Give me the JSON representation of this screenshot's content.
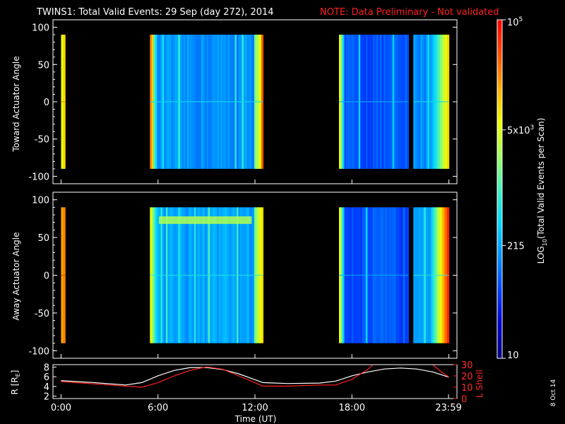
{
  "title": "TWINS1: Total Valid Events: 29 Sep (day 272), 2014",
  "note": "NOTE: Data Preliminary - Not validated",
  "date_stamp": "8 Oct 14",
  "colorbar": {
    "label": "LOG10(Total Valid Events per Scan)",
    "label_parts": {
      "pre": "LOG",
      "sub": "10",
      "post": "(Total Valid Events per Scan)"
    },
    "ticks": [
      {
        "id": "top",
        "base": "10",
        "exp": "5",
        "value": 100000
      },
      {
        "id": "mid",
        "base": "5x10",
        "exp": "3",
        "value": 5000
      },
      {
        "id": "low",
        "base": "215",
        "exp": "",
        "value": 215
      },
      {
        "id": "bot",
        "base": "10",
        "exp": "",
        "value": 10
      }
    ],
    "colors": [
      "#000080",
      "#0000d0",
      "#0040ff",
      "#0090ff",
      "#00d8ff",
      "#40f0c0",
      "#a0ff60",
      "#f0ff00",
      "#ffb000",
      "#ff5000",
      "#ff0000"
    ]
  },
  "chart_data": [
    {
      "id": "toward",
      "type": "heatmap",
      "ylabel": "Toward Actuator Angle",
      "ylim": [
        -110,
        110
      ],
      "yticks": [
        "100",
        "50",
        "0",
        "-50",
        "-100"
      ],
      "ytick_values": [
        100,
        50,
        0,
        -50,
        -100
      ],
      "xlim_hours": [
        -0.5,
        24.5
      ],
      "blocks": [
        {
          "start": 0.0,
          "end": 0.25,
          "level": 0.72,
          "style": "uniform"
        },
        {
          "start": 5.5,
          "end": 12.5,
          "level": 0.3,
          "style": "edge"
        },
        {
          "start": 17.2,
          "end": 21.5,
          "level": 0.22,
          "style": "edge_left"
        },
        {
          "start": 21.8,
          "end": 24.0,
          "level": 0.3,
          "style": "edge_right"
        }
      ]
    },
    {
      "id": "away",
      "type": "heatmap",
      "ylabel": "Away Actuator Angle",
      "ylim": [
        -110,
        110
      ],
      "yticks": [
        "100",
        "50",
        "0",
        "-50",
        "-100"
      ],
      "ytick_values": [
        100,
        50,
        0,
        -50,
        -100
      ],
      "xlim_hours": [
        -0.5,
        24.5
      ],
      "blocks": [
        {
          "start": 0.0,
          "end": 0.25,
          "level": 0.82,
          "style": "uniform"
        },
        {
          "start": 5.5,
          "end": 12.5,
          "level": 0.33,
          "style": "edge_band"
        },
        {
          "start": 17.2,
          "end": 21.5,
          "level": 0.22,
          "style": "edge_left"
        },
        {
          "start": 21.8,
          "end": 24.0,
          "level": 0.35,
          "style": "edge_right_warm"
        }
      ]
    },
    {
      "id": "orbit",
      "type": "line",
      "ylabel_left": "R [RE]",
      "ylabel_left_parts": {
        "pre": "R [R",
        "sub": "E",
        "post": "]"
      },
      "ylabel_right": "L Shell",
      "xlabel": "Time (UT)",
      "xticks": [
        "0:00",
        "6:00",
        "12:00",
        "18:00",
        "23:59"
      ],
      "xtick_hours": [
        0,
        6,
        12,
        18,
        23.98
      ],
      "ylim_left": [
        1.5,
        8.5
      ],
      "yticks_left": [
        "8",
        "6",
        "4",
        "2"
      ],
      "ytick_left_values": [
        8,
        6,
        4,
        2
      ],
      "ylim_right": [
        0,
        30
      ],
      "yticks_right": [
        "30",
        "20",
        "10",
        "0"
      ],
      "ytick_right_values": [
        30,
        20,
        10,
        0
      ],
      "series": [
        {
          "axis": "left",
          "color": "#ffffff",
          "x": [
            0,
            2,
            4,
            5,
            6,
            7,
            8,
            9,
            10,
            11,
            12,
            12.5,
            14,
            16,
            17,
            18,
            19,
            20,
            21,
            22,
            23,
            24
          ],
          "y": [
            5.2,
            4.8,
            4.3,
            4.8,
            6.2,
            7.3,
            7.9,
            7.9,
            7.5,
            6.6,
            5.4,
            4.8,
            4.6,
            4.7,
            5.1,
            6.2,
            7.0,
            7.6,
            7.8,
            7.6,
            7.0,
            5.9
          ]
        },
        {
          "axis": "right",
          "color": "#ff2020",
          "x": [
            0,
            2,
            4,
            5,
            6,
            7,
            8,
            9,
            10,
            11,
            12,
            12.5,
            14,
            16,
            17,
            18,
            19,
            19.3
          ],
          "y": [
            15,
            13,
            11,
            10,
            14,
            20,
            25,
            28,
            26,
            20,
            14,
            11,
            11,
            12,
            12,
            17,
            26,
            30
          ]
        },
        {
          "axis": "right",
          "color": "#ff2020",
          "x": [
            23.0,
            23.5,
            24
          ],
          "y": [
            30,
            24,
            19
          ]
        }
      ]
    }
  ]
}
